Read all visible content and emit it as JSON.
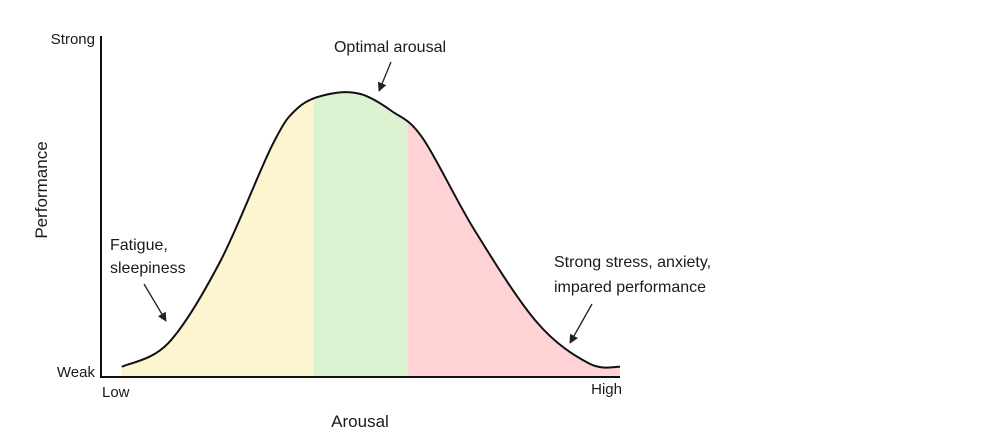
{
  "chart_data": {
    "type": "area",
    "title": "",
    "xlabel": "Arousal",
    "ylabel": "Performance",
    "x_tick_labels": {
      "low": "Low",
      "high": "High"
    },
    "y_tick_labels": {
      "low": "Weak",
      "high": "Strong"
    },
    "grid": false,
    "legend": "none",
    "regions": [
      {
        "name": "low-arousal",
        "x_range": [
          0.0,
          0.41
        ],
        "color": "#fdf4d0"
      },
      {
        "name": "optimal",
        "x_range": [
          0.41,
          0.59
        ],
        "color": "#dcf3d2"
      },
      {
        "name": "high-arousal",
        "x_range": [
          0.59,
          1.0
        ],
        "color": "#ffd3d6"
      }
    ],
    "curve": {
      "x": [
        0.04,
        0.13,
        0.23,
        0.33,
        0.38,
        0.44,
        0.5,
        0.56,
        0.62,
        0.72,
        0.84,
        0.94,
        1.0
      ],
      "y": [
        0.03,
        0.1,
        0.34,
        0.68,
        0.79,
        0.83,
        0.83,
        0.78,
        0.7,
        0.43,
        0.16,
        0.04,
        0.03
      ]
    },
    "annotations": [
      {
        "lines": [
          "Optimal arousal"
        ],
        "target": [
          0.53,
          0.84
        ]
      },
      {
        "lines": [
          "Fatigue,",
          "sleepiness"
        ],
        "target": [
          0.14,
          0.15
        ]
      },
      {
        "lines": [
          "Strong stress, anxiety,",
          "impared performance"
        ],
        "target": [
          0.93,
          0.09
        ]
      }
    ],
    "xlim": [
      0,
      1.0
    ],
    "ylim": [
      0,
      1
    ]
  }
}
